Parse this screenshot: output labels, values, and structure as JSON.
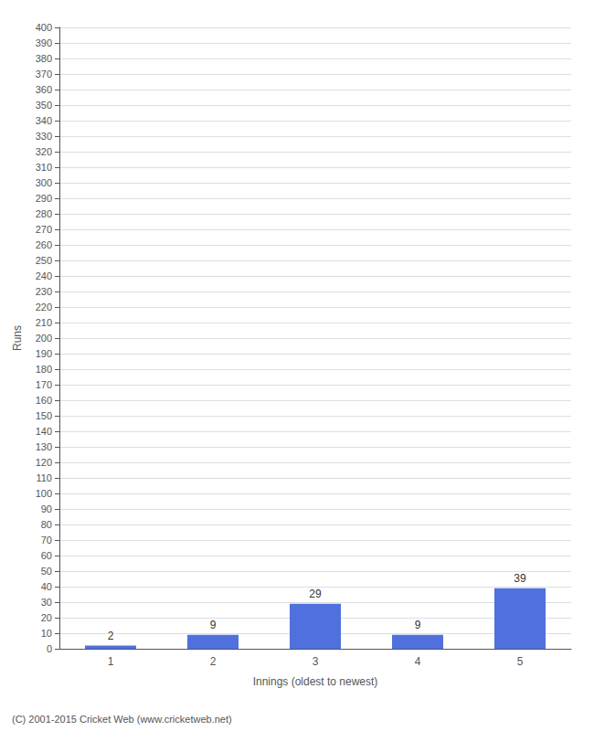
{
  "chart_data": {
    "type": "bar",
    "categories": [
      "1",
      "2",
      "3",
      "4",
      "5"
    ],
    "values": [
      2,
      9,
      29,
      9,
      39
    ],
    "xlabel": "Innings (oldest to newest)",
    "ylabel": "Runs",
    "ylim": [
      0,
      400
    ],
    "yticks": [
      0,
      10,
      20,
      30,
      40,
      50,
      60,
      70,
      80,
      90,
      100,
      110,
      120,
      130,
      140,
      150,
      160,
      170,
      180,
      190,
      200,
      210,
      220,
      230,
      240,
      250,
      260,
      270,
      280,
      290,
      300,
      310,
      320,
      330,
      340,
      350,
      360,
      370,
      380,
      390,
      400
    ],
    "grid": true,
    "data_labels": true,
    "annotations": [
      "(C) 2001-2015 Cricket Web (www.cricketweb.net)"
    ]
  }
}
